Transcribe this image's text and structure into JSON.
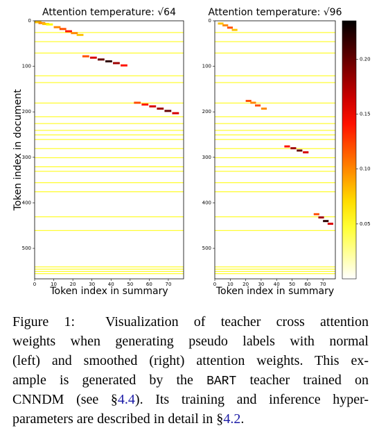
{
  "chart_data": [
    {
      "type": "heatmap",
      "title": "Attention temperature: √64",
      "x_label": "Token index in summary",
      "y_label": "Token index in document",
      "xlim": [
        0,
        78
      ],
      "ylim": [
        0,
        567
      ],
      "xticks": [
        0,
        10,
        20,
        30,
        40,
        50,
        60,
        70
      ],
      "yticks": [
        0,
        100,
        200,
        300,
        400,
        500
      ],
      "background_value": 0.015,
      "background_rows": [
        25,
        45,
        70,
        120,
        135,
        180,
        210,
        225,
        240,
        250,
        260,
        280,
        300,
        320,
        330,
        355,
        375,
        430,
        460,
        540,
        545,
        550,
        555
      ],
      "points": [
        [
          0,
          3,
          0.08
        ],
        [
          2,
          5,
          0.1
        ],
        [
          4,
          7,
          0.08
        ],
        [
          6,
          8,
          0.06
        ],
        [
          10,
          14,
          0.1
        ],
        [
          13,
          18,
          0.12
        ],
        [
          16,
          23,
          0.14
        ],
        [
          19,
          27,
          0.1
        ],
        [
          22,
          31,
          0.08
        ],
        [
          25,
          78,
          0.12
        ],
        [
          29,
          81,
          0.16
        ],
        [
          33,
          85,
          0.2
        ],
        [
          37,
          89,
          0.22
        ],
        [
          41,
          93,
          0.18
        ],
        [
          45,
          98,
          0.14
        ],
        [
          52,
          180,
          0.12
        ],
        [
          56,
          184,
          0.14
        ],
        [
          60,
          188,
          0.16
        ],
        [
          64,
          193,
          0.18
        ],
        [
          68,
          198,
          0.2
        ],
        [
          72,
          203,
          0.16
        ]
      ]
    },
    {
      "type": "heatmap",
      "title": "Attention temperature: √96",
      "x_label": "Token index in summary",
      "xlim": [
        0,
        78
      ],
      "ylim": [
        0,
        567
      ],
      "xticks": [
        0,
        10,
        20,
        30,
        40,
        50,
        60,
        70
      ],
      "yticks": [
        0,
        100,
        200,
        300,
        400,
        500
      ],
      "background_value": 0.015,
      "background_rows": [
        25,
        45,
        70,
        120,
        135,
        180,
        210,
        225,
        240,
        250,
        260,
        280,
        300,
        320,
        330,
        355,
        375,
        430,
        460,
        540,
        545,
        550,
        555
      ],
      "points": [
        [
          2,
          6,
          0.08
        ],
        [
          5,
          10,
          0.1
        ],
        [
          8,
          15,
          0.12
        ],
        [
          11,
          20,
          0.08
        ],
        [
          20,
          176,
          0.12
        ],
        [
          23,
          180,
          0.1
        ],
        [
          26,
          186,
          0.12
        ],
        [
          30,
          193,
          0.1
        ],
        [
          45,
          276,
          0.14
        ],
        [
          49,
          280,
          0.18
        ],
        [
          53,
          285,
          0.2
        ],
        [
          57,
          289,
          0.16
        ],
        [
          64,
          425,
          0.12
        ],
        [
          67,
          432,
          0.18
        ],
        [
          70,
          440,
          0.22
        ],
        [
          73,
          446,
          0.16
        ]
      ]
    },
    {
      "type": "colorbar",
      "colormap": "hot_r",
      "lim": [
        0,
        0.235
      ],
      "ticks": [
        0.05,
        {
          "value": 0.1,
          "label": "0.10"
        },
        0.15,
        {
          "value": 0.2,
          "label": "0.20"
        }
      ]
    }
  ],
  "caption": {
    "lines": [
      [
        "Figure 1:  Visualization of teacher cross attention"
      ],
      [
        "weights when generating pseudo labels with normal"
      ],
      [
        "(left) and smoothed (right) attention weights. This ex-"
      ],
      [
        "ample is generated by the ",
        {
          "text": "BART",
          "kind": "mono"
        },
        " teacher trained on"
      ],
      [
        "CNNDM (see §",
        {
          "text": "4.4",
          "kind": "link"
        },
        "). Its training and inference hyper-"
      ],
      [
        "parameters are described in detail in §",
        {
          "text": "4.2",
          "kind": "link"
        },
        "."
      ]
    ]
  }
}
